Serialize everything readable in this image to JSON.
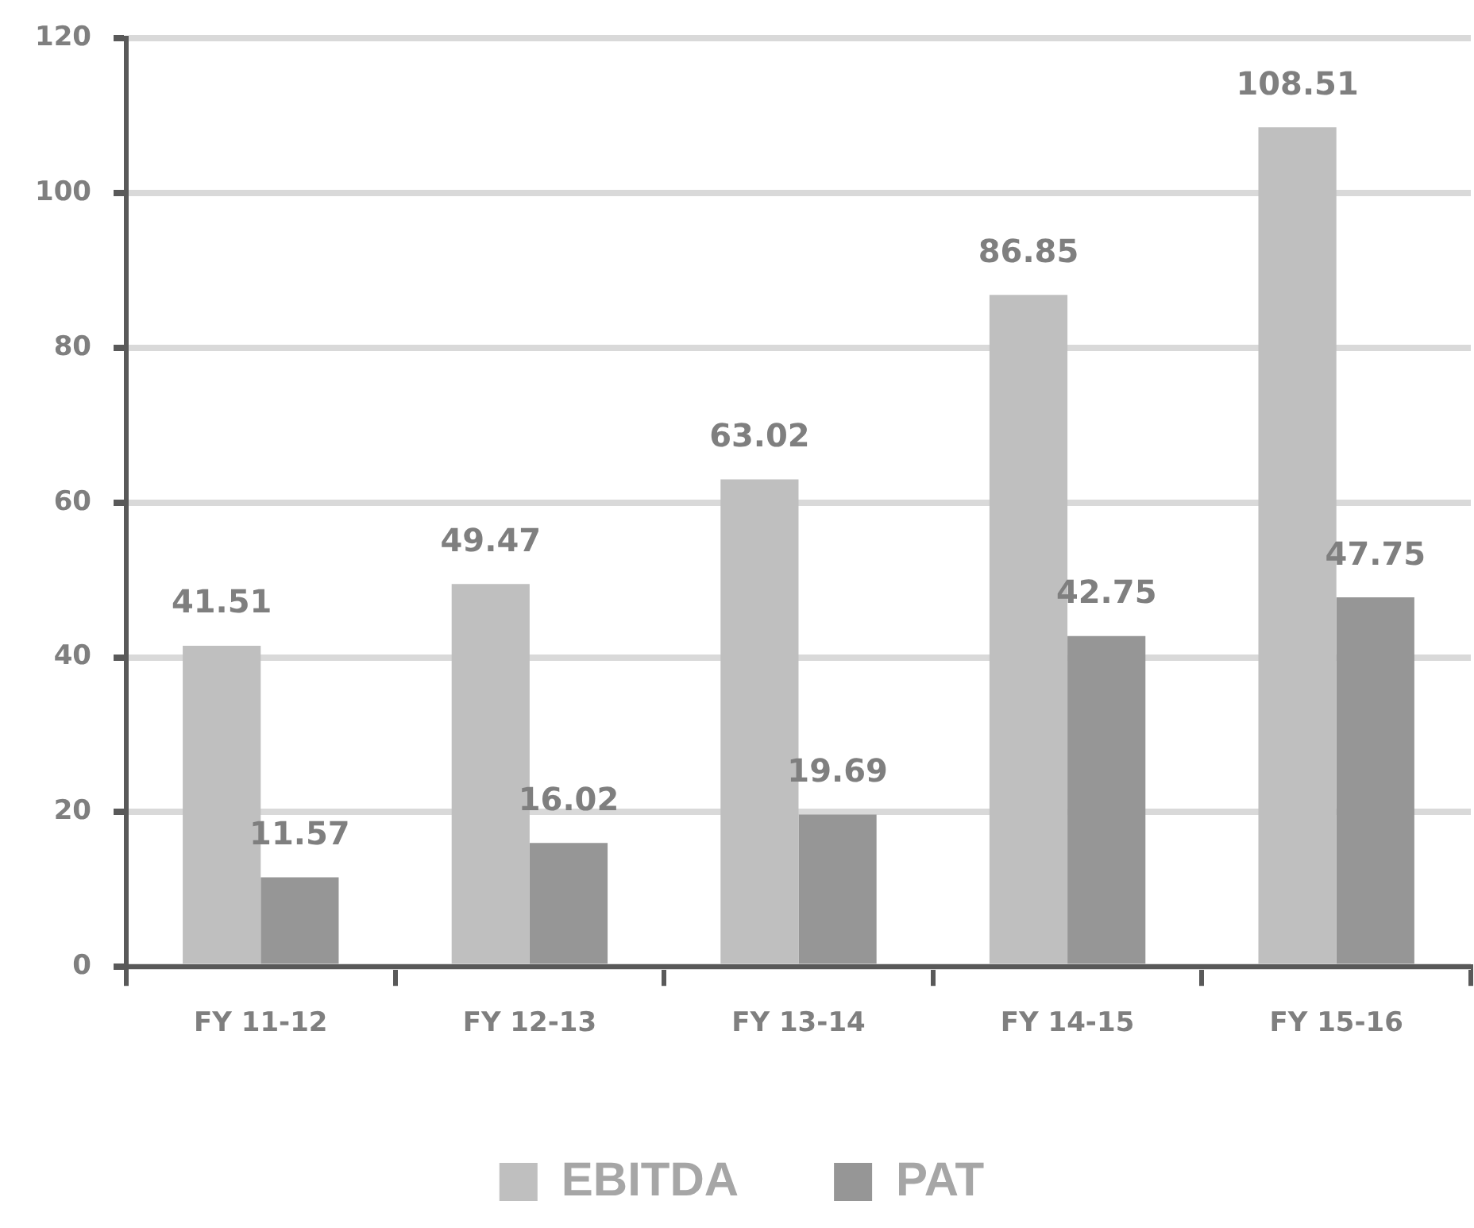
{
  "chart_data": {
    "type": "bar",
    "categories": [
      "FY 11-12",
      "FY 12-13",
      "FY 13-14",
      "FY 14-15",
      "FY 15-16"
    ],
    "series": [
      {
        "name": "EBITDA",
        "color": "#bfbfbf",
        "values": [
          41.51,
          49.47,
          63.02,
          86.85,
          108.51
        ]
      },
      {
        "name": "PAT",
        "color": "#969696",
        "values": [
          11.57,
          16.02,
          19.69,
          42.75,
          47.75
        ]
      }
    ],
    "ylim": [
      0,
      120
    ],
    "yticks": [
      0,
      20,
      40,
      60,
      80,
      100,
      120
    ],
    "grid": "y",
    "legend": "bottom",
    "data_labels": true
  }
}
